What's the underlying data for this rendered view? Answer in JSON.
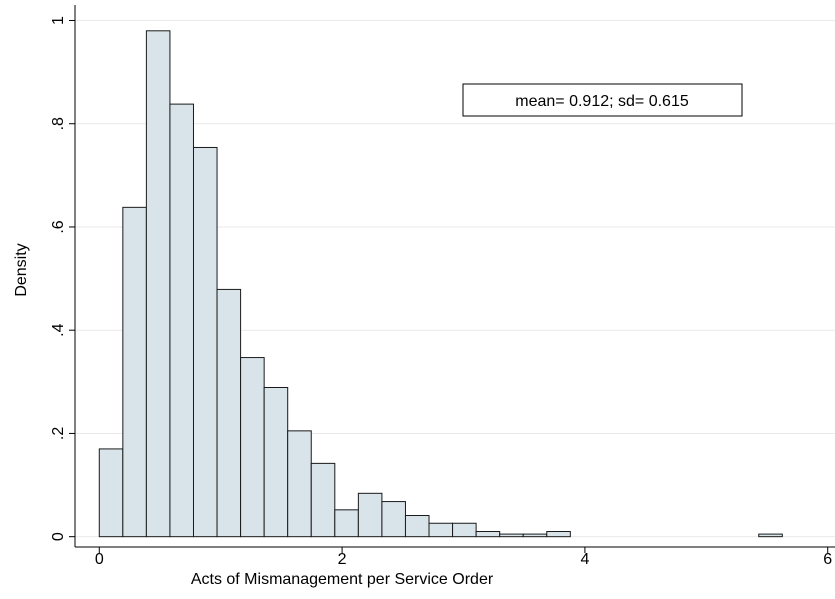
{
  "chart_data": {
    "type": "histogram",
    "xlabel": "Acts of Mismanagement per Service Order",
    "ylabel": "Density",
    "annotation": "mean= 0.912; sd= 0.615",
    "bins": [
      0,
      0.194,
      0.388,
      0.582,
      0.776,
      0.97,
      1.164,
      1.358,
      1.552,
      1.746,
      1.94,
      2.134,
      2.328,
      2.522,
      2.716,
      2.91,
      3.104,
      3.298,
      3.492,
      3.686,
      3.88,
      4.074,
      4.268,
      4.462,
      4.656,
      4.85,
      5.044,
      5.238,
      5.432,
      5.626
    ],
    "values": [
      0.17,
      0.638,
      0.98,
      0.838,
      0.754,
      0.479,
      0.347,
      0.289,
      0.205,
      0.142,
      0.052,
      0.084,
      0.068,
      0.041,
      0.026,
      0.026,
      0.01,
      0.005,
      0.005,
      0.01,
      0,
      0,
      0,
      0,
      0,
      0,
      0,
      0,
      0.005
    ],
    "color": "#d9e4ea",
    "xlim": [
      -0.2,
      6.06
    ],
    "ylim": [
      -0.02,
      1.03
    ],
    "xticks": [
      0,
      2,
      4,
      6
    ],
    "yticks": [
      0,
      {
        "value": 0.2,
        "label": ".2"
      },
      {
        "value": 0.4,
        "label": ".4"
      },
      {
        "value": 0.6,
        "label": ".6"
      },
      {
        "value": 0.8,
        "label": ".8"
      },
      1
    ],
    "grid": true
  }
}
